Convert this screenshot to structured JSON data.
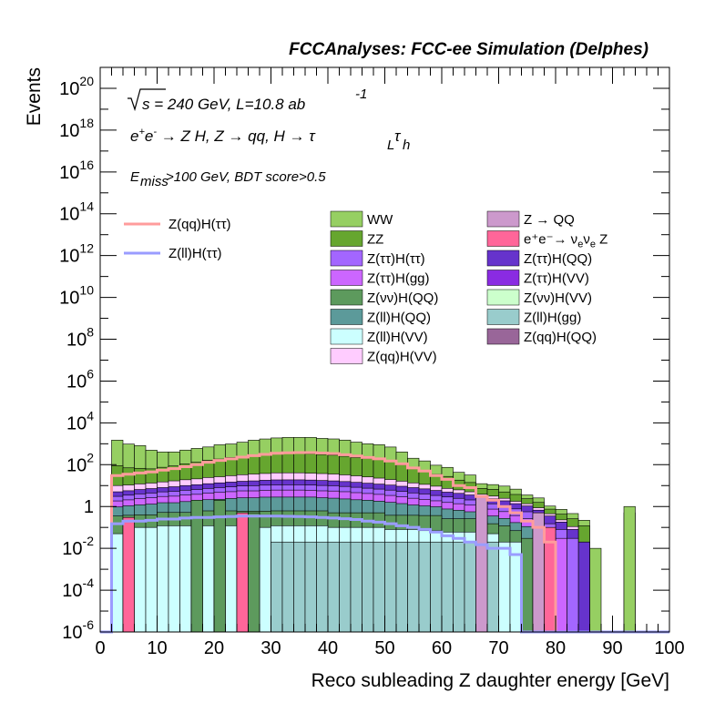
{
  "chart_data": {
    "type": "area",
    "title": "FCCAnalyses: FCC-ee Simulation (Delphes)",
    "xlabel": "Reco subleading Z daughter energy [GeV]",
    "ylabel": "Events",
    "xlim": [
      0,
      100
    ],
    "ylim": [
      1e-06,
      1e+21
    ],
    "log_y": true,
    "annotations": {
      "energy": "√s = 240 GeV, L=10.8 ab",
      "energy_sup": "-1",
      "process": "e⁺e⁻ → Z H, Z → qq, H → τ",
      "process_sub1": "L",
      "process_tau": "τ",
      "process_sub2": "h",
      "cuts": "E",
      "cuts_sub": "miss",
      "cuts_rest": ">100 GeV, BDT score>0.5"
    },
    "x_ticks": [
      "0",
      "10",
      "20",
      "30",
      "40",
      "50",
      "60",
      "70",
      "80",
      "90",
      "100"
    ],
    "y_ticks": [
      {
        "base": "10",
        "exp": "-6"
      },
      {
        "base": "10",
        "exp": "-4"
      },
      {
        "base": "10",
        "exp": "-2"
      },
      {
        "base": "1",
        "exp": ""
      },
      {
        "base": "10",
        "exp": "2"
      },
      {
        "base": "10",
        "exp": "4"
      },
      {
        "base": "10",
        "exp": "6"
      },
      {
        "base": "10",
        "exp": "8"
      },
      {
        "base": "10",
        "exp": "10"
      },
      {
        "base": "10",
        "exp": "12"
      },
      {
        "base": "10",
        "exp": "14"
      },
      {
        "base": "10",
        "exp": "16"
      },
      {
        "base": "10",
        "exp": "18"
      },
      {
        "base": "10",
        "exp": "20"
      }
    ],
    "bin_width": 2,
    "legend_signal": [
      {
        "name": "Z(qq)H(ττ)",
        "color": "#ff9c9c"
      },
      {
        "name": "Z(ll)H(ττ)",
        "color": "#9a9cff"
      }
    ],
    "legend_bkg_left": [
      {
        "name": "WW",
        "color": "#96cf62"
      },
      {
        "name": "ZZ",
        "color": "#66a62f"
      },
      {
        "name": "Z(ττ)H(ττ)",
        "color": "#a366ff"
      },
      {
        "name": "Z(ττ)H(gg)",
        "color": "#cc66ff"
      },
      {
        "name": "Z(νν)H(QQ)",
        "color": "#5d9a5d"
      },
      {
        "name": "Z(ll)H(QQ)",
        "color": "#5c9a9a"
      },
      {
        "name": "Z(ll)H(VV)",
        "color": "#ccffff"
      },
      {
        "name": "Z(qq)H(VV)",
        "color": "#ffccff"
      }
    ],
    "legend_bkg_right": [
      {
        "name": "Z → QQ",
        "color": "#cc99cc"
      },
      {
        "name": "e⁺e⁻→ ν",
        "sub1": "e",
        "mid": "ν",
        "sub2": "e",
        "tail": " Z",
        "color": "#ff6699"
      },
      {
        "name": "Z(ττ)H(QQ)",
        "color": "#6633cc"
      },
      {
        "name": "Z(ττ)H(VV)",
        "color": "#8a2be2"
      },
      {
        "name": "Z(νν)H(VV)",
        "color": "#ccffcc"
      },
      {
        "name": "Z(ll)H(gg)",
        "color": "#99cccc"
      },
      {
        "name": "Z(qq)H(QQ)",
        "color": "#996699"
      }
    ],
    "series_stack_order": [
      "Z(ll)H(gg)",
      "Z(ll)H(VV)",
      "Z(νν)H(QQ)",
      "Z(ll)H(QQ)",
      "Z(ττ)H(gg)",
      "Z(ττ)H(ττ)",
      "Z(ττ)H(QQ)",
      "Z(qq)H(VV)",
      "ZZ",
      "WW"
    ],
    "stack_totals": [
      1e-06,
      1500.0,
      1000.0,
      800.0,
      500.0,
      400.0,
      400.0,
      500.0,
      600.0,
      700.0,
      900.0,
      1000.0,
      1200.0,
      1500.0,
      1700.0,
      1900.0,
      2000.0,
      2000.0,
      2000.0,
      1800.0,
      1700.0,
      1500.0,
      1200.0,
      1000.0,
      900.0,
      700.0,
      400.0,
      200.0,
      150.0,
      90.0,
      70.0,
      40.0,
      30.0,
      10.0,
      10.0,
      8,
      6,
      3,
      2,
      0.8,
      0.5,
      0.4,
      0.2,
      0.01,
      1e-06,
      1e-06,
      0.5,
      1e-06,
      1e-06,
      1e-06
    ],
    "layers": {
      "Z(ll)H(gg)": [
        1e-06,
        1e-06,
        1e-06,
        1e-06,
        1e-06,
        1e-06,
        1e-06,
        1e-06,
        1e-06,
        1e-06,
        1e-06,
        1e-06,
        1e-06,
        1e-06,
        1e-06,
        0.02,
        0.02,
        0.02,
        0.02,
        0.02,
        0.02,
        0.02,
        0.02,
        0.02,
        0.02,
        0.02,
        0.02,
        0.02,
        0.02,
        0.02,
        0.02,
        0.02,
        0.02,
        0.02,
        0.02,
        1e-06,
        1e-06,
        1e-06,
        1e-06,
        1e-06,
        1e-06,
        1e-06,
        1e-06,
        1e-06,
        1e-06,
        1e-06,
        1e-06,
        1e-06,
        1e-06,
        1e-06
      ],
      "Z(ll)H(VV)": [
        1e-06,
        0.05,
        0.08,
        0.1,
        0.1,
        0.12,
        0.12,
        0.12,
        0.12,
        0.12,
        0.12,
        0.12,
        0.1,
        0.1,
        0.1,
        0.1,
        0.1,
        0.1,
        0.1,
        0.1,
        0.08,
        0.08,
        0.08,
        0.08,
        0.08,
        0.06,
        0.06,
        0.06,
        0.05,
        0.05,
        0.04,
        0.04,
        0.04,
        0.03,
        0.03,
        0.02,
        0.02,
        1e-06,
        1e-06,
        1e-06,
        1e-06,
        1e-06,
        1e-06,
        1e-06,
        1e-06,
        1e-06,
        1e-06,
        1e-06,
        1e-06,
        1e-06
      ],
      "Z(νν)H(QQ)": [
        1e-06,
        0.3,
        0.3,
        0.3,
        0.3,
        0.4,
        0.4,
        0.4,
        0.4,
        0.5,
        0.5,
        0.5,
        0.5,
        0.5,
        0.5,
        0.5,
        0.5,
        0.5,
        0.5,
        0.5,
        0.4,
        0.4,
        0.4,
        0.4,
        0.4,
        0.3,
        0.3,
        0.3,
        0.3,
        0.3,
        0.2,
        0.2,
        0.2,
        0.15,
        0.1,
        0.1,
        0.05,
        0.03,
        0.02,
        1e-06,
        1e-06,
        1e-06,
        1e-06,
        1e-06,
        1e-06,
        1e-06,
        1e-06,
        1e-06,
        1e-06,
        1e-06
      ],
      "Z(ll)H(QQ)": [
        1e-06,
        0.6,
        0.7,
        0.8,
        0.9,
        1,
        1,
        1.2,
        1.3,
        1.5,
        1.6,
        1.8,
        2,
        2,
        2.2,
        2.2,
        2.2,
        2.2,
        2.2,
        2,
        2,
        1.8,
        1.6,
        1.5,
        1.3,
        1.2,
        1,
        0.8,
        0.7,
        0.6,
        0.5,
        0.4,
        0.3,
        0.25,
        0.2,
        0.15,
        0.1,
        0.08,
        0.05,
        1e-06,
        1e-06,
        1e-06,
        1e-06,
        1e-06,
        1e-06,
        1e-06,
        1e-06,
        1e-06,
        1e-06,
        1e-06
      ],
      "Z(ττ)H(gg)": [
        1e-06,
        0.9,
        1,
        1.2,
        1.3,
        1.5,
        1.6,
        1.8,
        2,
        2.2,
        2.5,
        2.7,
        3,
        3,
        3.2,
        3.3,
        3.3,
        3.3,
        3.2,
        3,
        3,
        2.8,
        2.5,
        2.2,
        2,
        1.8,
        1.5,
        1.3,
        1.1,
        0.9,
        0.8,
        0.7,
        0.6,
        0.5,
        0.4,
        0.3,
        0.2,
        0.15,
        0.1,
        0.05,
        0.03,
        1e-06,
        1e-06,
        1e-06,
        1e-06,
        1e-06,
        1e-06,
        1e-06,
        1e-06,
        1e-06
      ],
      "Z(ττ)H(ττ)": [
        1e-06,
        1.2,
        1.4,
        1.6,
        1.8,
        2,
        2.2,
        2.5,
        2.7,
        3,
        3.3,
        3.6,
        4,
        4.2,
        4.5,
        4.6,
        4.7,
        4.7,
        4.6,
        4.5,
        4.3,
        4,
        3.7,
        3.3,
        3,
        2.7,
        2.4,
        2,
        1.8,
        1.5,
        1.3,
        1.1,
        0.9,
        0.7,
        0.6,
        0.5,
        0.4,
        0.3,
        0.2,
        0.1,
        0.05,
        0.03,
        1e-06,
        1e-06,
        1e-06,
        1e-06,
        1e-06,
        1e-06,
        1e-06,
        1e-06
      ],
      "Z(ττ)H(QQ)": [
        1e-06,
        2,
        2.2,
        2.5,
        2.8,
        3,
        3.5,
        4,
        4.5,
        5,
        5.5,
        6,
        6.5,
        7,
        7.5,
        8,
        8,
        8,
        7.8,
        7.5,
        7,
        6.5,
        6,
        5.5,
        5,
        4.5,
        4,
        3.5,
        3,
        2.5,
        2,
        1.8,
        1.5,
        1.2,
        1,
        0.8,
        0.6,
        0.5,
        0.3,
        0.2,
        0.1,
        0.05,
        0.02,
        1e-06,
        1e-06,
        1e-06,
        1e-06,
        1e-06,
        1e-06,
        1e-06
      ],
      "Z(qq)H(VV)": [
        1e-06,
        5,
        5,
        5.5,
        6,
        7,
        8,
        9,
        10,
        12,
        13,
        15,
        17,
        19,
        20,
        22,
        22,
        22,
        21,
        20,
        19,
        17,
        15,
        13,
        11,
        9,
        7,
        5.5,
        4.5,
        3.5,
        2.5,
        2,
        1.5,
        1,
        0.8,
        0.6,
        0.4,
        0.3,
        0.2,
        0.1,
        0.05,
        0.03,
        1e-06,
        1e-06,
        1e-06,
        1e-06,
        1e-06,
        1e-06,
        1e-06,
        1e-06
      ],
      "ZZ": [
        1e-06,
        80,
        60,
        55,
        50,
        60,
        70,
        90,
        110,
        140,
        160,
        190,
        220,
        250,
        280,
        300,
        300,
        300,
        290,
        270,
        250,
        220,
        190,
        170,
        150,
        120,
        80,
        50,
        40,
        25,
        20,
        12,
        9,
        3.5,
        3.5,
        2.5,
        2,
        1,
        0.7,
        0.3,
        0.2,
        0.15,
        0.1,
        1e-06,
        1e-06,
        1e-06,
        1e-06,
        1e-06,
        1e-06,
        1e-06
      ],
      "WW": [
        1e-06,
        1400.0,
        900.0,
        750.0,
        430.0,
        330.0,
        320.0,
        390.0,
        470.0,
        540.0,
        710.0,
        760.0,
        940.0,
        1200.0,
        1380.0,
        1560.0,
        1670.0,
        1670.0,
        1680.0,
        1500.0,
        1420.0,
        1250.0,
        980.0,
        800.0,
        730.0,
        560.0,
        310.0,
        140.0,
        100.0,
        60.0,
        47.0,
        25.0,
        18.0,
        5,
        4.5,
        4.5,
        3,
        1.2,
        1,
        0.3,
        0.3,
        0.2,
        0.1,
        0.01,
        1e-06,
        1e-06,
        0.5,
        1e-06,
        1e-06,
        1e-06
      ]
    },
    "signal_Zqq_Htautau": [
      1e-06,
      30,
      35,
      40,
      45,
      55,
      65,
      80,
      100,
      130,
      160,
      190,
      230,
      270,
      310,
      350,
      370,
      380,
      380,
      360,
      340,
      300,
      260,
      220,
      190,
      150,
      110,
      70,
      50,
      30,
      20,
      10,
      8,
      3,
      2,
      1,
      0.5,
      0.2,
      0.1,
      0.02,
      1e-06,
      1e-06,
      1e-06,
      1e-06,
      1e-06,
      1e-06,
      1e-06,
      1e-06,
      1e-06,
      1e-06
    ],
    "signal_Zll_Htautau": [
      1e-06,
      0.15,
      0.2,
      0.2,
      0.22,
      0.25,
      0.25,
      0.28,
      0.3,
      0.3,
      0.32,
      0.33,
      0.35,
      0.35,
      0.35,
      0.35,
      0.34,
      0.33,
      0.32,
      0.3,
      0.28,
      0.26,
      0.24,
      0.2,
      0.18,
      0.15,
      0.12,
      0.1,
      0.08,
      0.06,
      0.04,
      0.03,
      0.02,
      0.015,
      0.01,
      0.01,
      0.005,
      1e-06,
      1e-06,
      1e-06,
      1e-06,
      1e-06,
      1e-06,
      1e-06,
      1e-06,
      1e-06,
      1e-06,
      1e-06,
      1e-06,
      1e-06
    ],
    "spikes": [
      {
        "x": 4,
        "name": "e⁺e⁻→ νeνe Z",
        "color": "#ff6699",
        "value": 0.3
      },
      {
        "x": 16,
        "name": "Z(νν)H(QQ)",
        "color": "#5d9a5d",
        "value": 2
      },
      {
        "x": 20,
        "name": "Z(νν)H(QQ)",
        "color": "#5d9a5d",
        "value": 2
      },
      {
        "x": 24,
        "name": "e⁺e⁻→ νeνe Z",
        "color": "#ff6699",
        "value": 0.5
      },
      {
        "x": 26,
        "name": "Z(νν)H(QQ)",
        "color": "#5d9a5d",
        "value": 0.5
      },
      {
        "x": 66,
        "name": "Z → QQ",
        "color": "#cc99cc",
        "value": 3
      },
      {
        "x": 76,
        "name": "Z → QQ",
        "color": "#cc99cc",
        "value": 0.5
      },
      {
        "x": 78,
        "name": "e⁺e⁻→ νeνe Z",
        "color": "#ff6699",
        "value": 0.1
      },
      {
        "x": 92,
        "name": "WW",
        "color": "#96cf62",
        "value": 1
      }
    ]
  }
}
